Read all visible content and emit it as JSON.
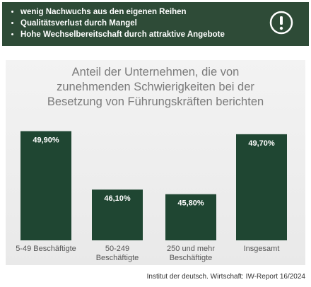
{
  "banner": {
    "items": [
      "wenig Nachwuchs aus den eigenen Reihen",
      "Qualitätsverlust durch Mangel",
      "Hohe Wechselbereitschaft durch attraktive Angebote"
    ]
  },
  "chart_data": {
    "type": "bar",
    "title": "Anteil der Unternehmen, die von zunehmenden Schwierigkeiten bei der Besetzung von Führungskräften berichten",
    "categories": [
      "5-49 Beschäftigte",
      "50-249 Beschäftigte",
      "250 und mehr Beschäftigte",
      "Insgesamt"
    ],
    "values": [
      49.9,
      46.1,
      45.8,
      49.7
    ],
    "value_labels": [
      "49,90%",
      "46,10%",
      "45,80%",
      "49,70%"
    ],
    "color": "#1f4632",
    "ylim": [
      42.8,
      50.2
    ]
  },
  "source": "Institut der deutsch. Wirtschaft: IW-Report 16/2024"
}
